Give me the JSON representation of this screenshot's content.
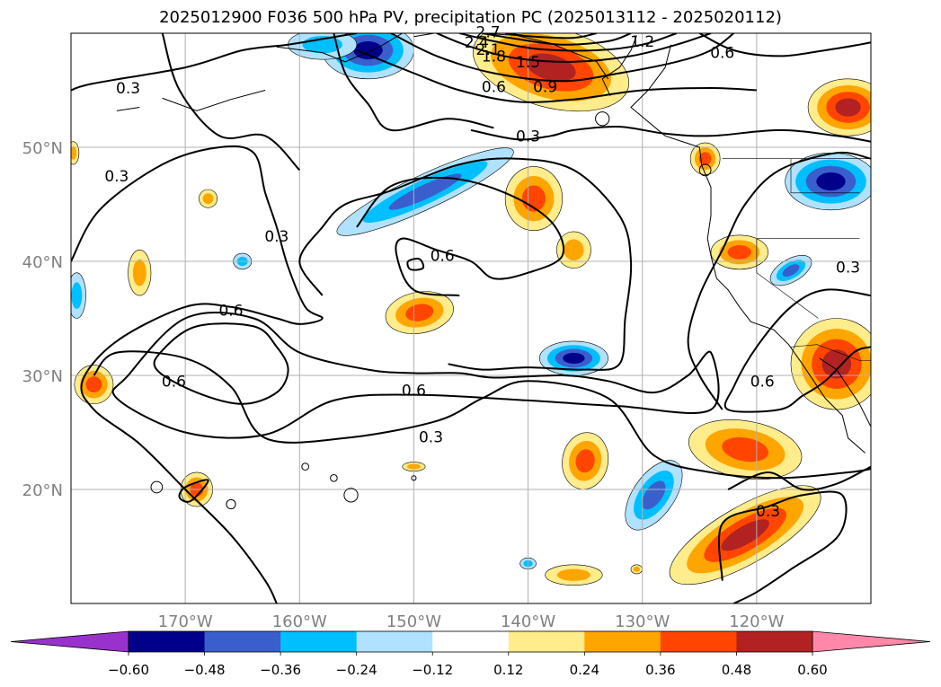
{
  "title": "2025012900 F036 500 hPa PV, precipitation PC (2025013112 - 2025020112)",
  "map": {
    "lon_range": [
      -180,
      -110
    ],
    "lat_range": [
      10,
      60
    ],
    "lon_ticks": [
      {
        "value": -170,
        "label": "170°W"
      },
      {
        "value": -160,
        "label": "160°W"
      },
      {
        "value": -150,
        "label": "150°W"
      },
      {
        "value": -140,
        "label": "140°W"
      },
      {
        "value": -130,
        "label": "130°W"
      },
      {
        "value": -120,
        "label": "120°W"
      }
    ],
    "lat_ticks": [
      {
        "value": 50,
        "label": "50°N"
      },
      {
        "value": 40,
        "label": "40°N"
      },
      {
        "value": 30,
        "label": "30°N"
      },
      {
        "value": 20,
        "label": "20°N"
      }
    ],
    "gridlines": true,
    "tick_label_color": "#808080"
  },
  "contour_labels": [
    {
      "text": "0.3",
      "lon": -175,
      "lat": 55.2
    },
    {
      "text": "0.3",
      "lon": -176,
      "lat": 47.5
    },
    {
      "text": "0.3",
      "lon": -162,
      "lat": 42.2
    },
    {
      "text": "0.3",
      "lon": -140,
      "lat": 51
    },
    {
      "text": "0.3",
      "lon": -148.5,
      "lat": 24.6
    },
    {
      "text": "0.3",
      "lon": -119,
      "lat": 18.1
    },
    {
      "text": "0.3",
      "lon": -112,
      "lat": 39.5
    },
    {
      "text": "0.6",
      "lon": -166,
      "lat": 35.7
    },
    {
      "text": "0.6",
      "lon": -150,
      "lat": 28.7
    },
    {
      "text": "0.6",
      "lon": -147.5,
      "lat": 40.5
    },
    {
      "text": "0.6",
      "lon": -143,
      "lat": 55.3
    },
    {
      "text": "0.6",
      "lon": -171,
      "lat": 29.5
    },
    {
      "text": "0.6",
      "lon": -123,
      "lat": 58.3
    },
    {
      "text": "0.6",
      "lon": -119.5,
      "lat": 29.5
    },
    {
      "text": "0.9",
      "lon": -138.5,
      "lat": 55.3
    },
    {
      "text": "1.5",
      "lon": -140,
      "lat": 57.5
    },
    {
      "text": "1.8",
      "lon": -143,
      "lat": 58
    },
    {
      "text": "2.1",
      "lon": -143.5,
      "lat": 58.6
    },
    {
      "text": "2.4",
      "lon": -144.5,
      "lat": 59.2
    },
    {
      "text": "2.7",
      "lon": -143.5,
      "lat": 60.1
    },
    {
      "text": "1.2",
      "lon": -130,
      "lat": 59.3
    }
  ],
  "precip_blobs": [
    {
      "lon": -149,
      "lat": 46.1,
      "rx": 8.5,
      "ry": 1.5,
      "rot": -25,
      "value": -0.36
    },
    {
      "lon": -154,
      "lat": 58.5,
      "rx": 4,
      "ry": 2.5,
      "rot": 0,
      "value": -0.48
    },
    {
      "lon": -158,
      "lat": 59,
      "rx": 3,
      "ry": 1.3,
      "rot": 0,
      "value": -0.24
    },
    {
      "lon": -139.5,
      "lat": 45.5,
      "rx": 2.5,
      "ry": 2.8,
      "rot": 0,
      "value": 0.36
    },
    {
      "lon": -136,
      "lat": 41,
      "rx": 1.5,
      "ry": 1.6,
      "rot": 0,
      "value": 0.24
    },
    {
      "lon": -138,
      "lat": 57,
      "rx": 7,
      "ry": 3.5,
      "rot": 15,
      "value": 0.48
    },
    {
      "lon": -149.5,
      "lat": 35.5,
      "rx": 3,
      "ry": 1.8,
      "rot": -10,
      "value": 0.36
    },
    {
      "lon": -168,
      "lat": 45.5,
      "rx": 0.8,
      "ry": 0.8,
      "rot": 0,
      "value": 0.24
    },
    {
      "lon": -174,
      "lat": 39,
      "rx": 1,
      "ry": 2,
      "rot": 0,
      "value": 0.24
    },
    {
      "lon": -165,
      "lat": 40,
      "rx": 0.8,
      "ry": 0.7,
      "rot": 0,
      "value": -0.24
    },
    {
      "lon": -136,
      "lat": 31.5,
      "rx": 3,
      "ry": 1.5,
      "rot": 0,
      "value": -0.48
    },
    {
      "lon": -135,
      "lat": 22.5,
      "rx": 2,
      "ry": 2.5,
      "rot": 10,
      "value": 0.36
    },
    {
      "lon": -129,
      "lat": 19.5,
      "rx": 1.8,
      "ry": 3.5,
      "rot": 35,
      "value": -0.36
    },
    {
      "lon": -121,
      "lat": 23.5,
      "rx": 5,
      "ry": 2.5,
      "rot": 10,
      "value": 0.36
    },
    {
      "lon": -121,
      "lat": 16,
      "rx": 7.5,
      "ry": 2.5,
      "rot": -30,
      "value": 0.48
    },
    {
      "lon": -136,
      "lat": 12.5,
      "rx": 2.5,
      "ry": 0.9,
      "rot": 0,
      "value": 0.24
    },
    {
      "lon": -140,
      "lat": 13.5,
      "rx": 0.7,
      "ry": 0.5,
      "rot": 0,
      "value": -0.24
    },
    {
      "lon": -169,
      "lat": 20,
      "rx": 1.4,
      "ry": 1.5,
      "rot": 0,
      "value": 0.36
    },
    {
      "lon": -150,
      "lat": 22,
      "rx": 1,
      "ry": 0.4,
      "rot": 0,
      "value": 0.24
    },
    {
      "lon": -130.5,
      "lat": 13,
      "rx": 0.5,
      "ry": 0.4,
      "rot": 0,
      "value": 0.24
    },
    {
      "lon": -178,
      "lat": 29.2,
      "rx": 1.7,
      "ry": 1.7,
      "rot": 0,
      "value": 0.36
    },
    {
      "lon": -179.5,
      "lat": 37,
      "rx": 0.8,
      "ry": 2,
      "rot": 0,
      "value": -0.24
    },
    {
      "lon": -179.8,
      "lat": 49.5,
      "rx": 0.5,
      "ry": 1,
      "rot": 0,
      "value": 0.24
    },
    {
      "lon": -117,
      "lat": 39.2,
      "rx": 2,
      "ry": 1,
      "rot": -30,
      "value": -0.36
    },
    {
      "lon": -113.5,
      "lat": 47,
      "rx": 4,
      "ry": 2.5,
      "rot": 0,
      "value": -0.48
    },
    {
      "lon": -121.5,
      "lat": 40.8,
      "rx": 2.5,
      "ry": 1.5,
      "rot": 0,
      "value": 0.36
    },
    {
      "lon": -113,
      "lat": 31,
      "rx": 4,
      "ry": 4,
      "rot": 20,
      "value": 0.48
    },
    {
      "lon": -112,
      "lat": 53.5,
      "rx": 3.5,
      "ry": 2.5,
      "rot": 0,
      "value": 0.48
    },
    {
      "lon": -124.5,
      "lat": 49,
      "rx": 1.3,
      "ry": 1.4,
      "rot": 0,
      "value": 0.36
    }
  ],
  "colorbar": {
    "under_color": "#9932cc",
    "over_color": "#ff88aa",
    "bins": [
      {
        "color": "#00008b"
      },
      {
        "color": "#3a5fcd"
      },
      {
        "color": "#00bfff"
      },
      {
        "color": "#b0e2ff"
      },
      {
        "color": "#ffffff"
      },
      {
        "color": "#ffec8b"
      },
      {
        "color": "#ffa500"
      },
      {
        "color": "#ff4500"
      },
      {
        "color": "#b22222"
      }
    ],
    "ticks": [
      "−0.60",
      "−0.48",
      "−0.36",
      "−0.24",
      "−0.12",
      "0.12",
      "0.24",
      "0.36",
      "0.48",
      "0.60"
    ]
  }
}
